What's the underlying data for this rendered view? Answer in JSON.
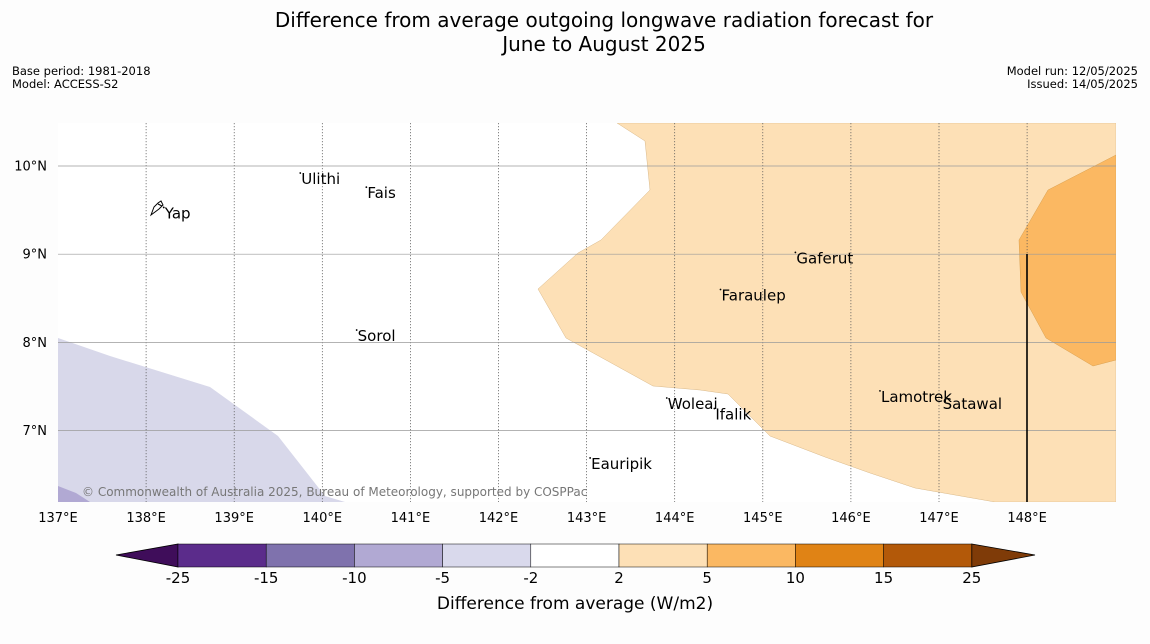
{
  "title": {
    "line1": "Difference from average outgoing longwave radiation forecast for",
    "line2": "June to August 2025"
  },
  "meta": {
    "base_period": "Base period: 1981-2018",
    "model": "Model: ACCESS-S2",
    "model_run": "Model run: 12/05/2025",
    "issued": "Issued: 14/05/2025"
  },
  "map": {
    "lon_range": [
      137,
      149
    ],
    "lat_range": [
      6.2,
      10.5
    ],
    "lon_ticks": [
      "137°E",
      "138°E",
      "139°E",
      "140°E",
      "141°E",
      "142°E",
      "143°E",
      "144°E",
      "145°E",
      "146°E",
      "147°E",
      "148°E"
    ],
    "lat_ticks": [
      "10°N",
      "9°N",
      "8°N",
      "7°N"
    ],
    "places": [
      {
        "name": "Ulithi",
        "lon": 139.75,
        "lat": 9.92
      },
      {
        "name": "Fais",
        "lon": 140.5,
        "lat": 9.76
      },
      {
        "name": "Yap",
        "lon": 138.2,
        "lat": 9.53
      },
      {
        "name": "Gaferut",
        "lon": 145.37,
        "lat": 9.02
      },
      {
        "name": "Faraulep",
        "lon": 144.52,
        "lat": 8.6
      },
      {
        "name": "Sorol",
        "lon": 140.39,
        "lat": 8.14
      },
      {
        "name": "Lamotrek",
        "lon": 146.33,
        "lat": 7.45
      },
      {
        "name": "Woleai",
        "lon": 143.91,
        "lat": 7.37
      },
      {
        "name": "Ifalik",
        "lon": 144.45,
        "lat": 7.25
      },
      {
        "name": "Satawal",
        "lon": 147.03,
        "lat": 7.37
      },
      {
        "name": "Eauripik",
        "lon": 143.04,
        "lat": 6.69
      }
    ],
    "copyright": "© Commonwealth of Australia 2025, Bureau of Meteorology, supported by COSPPac",
    "colors": {
      "light_purple": "#d8d8ea",
      "light_orange": "#fde0b6",
      "orange": "#fbb862"
    }
  },
  "colorbar": {
    "title": "Difference from average (W/m2)",
    "labels": [
      "-25",
      "-15",
      "-10",
      "-5",
      "-2",
      "2",
      "5",
      "10",
      "15",
      "25"
    ],
    "colors": [
      "#3f0d5a",
      "#5b2c8b",
      "#7f72ad",
      "#b1a9d3",
      "#d9d9ec",
      "#ffffff",
      "#fde0b6",
      "#fbb862",
      "#e08315",
      "#b35909",
      "#7f3b08"
    ]
  }
}
